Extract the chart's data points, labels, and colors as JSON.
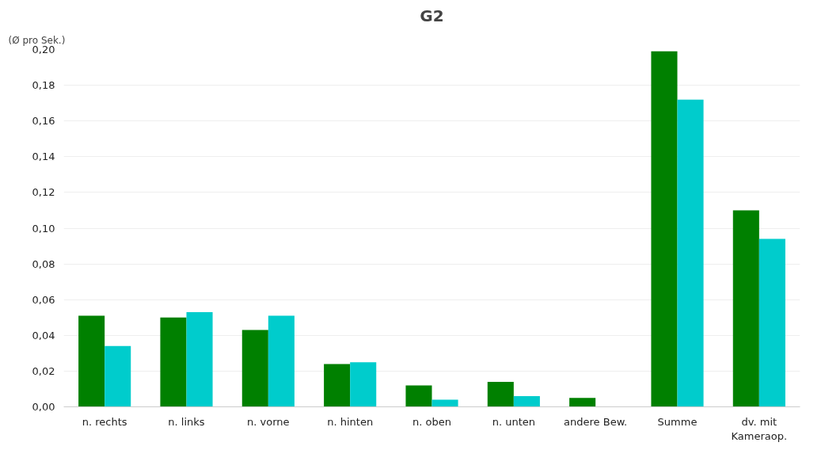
{
  "chart_data": {
    "type": "bar",
    "title": "G2",
    "ylabel": "(Ø pro Sek.)",
    "categories": [
      "n. rechts",
      "n. links",
      "n. vorne",
      "n. hinten",
      "n. oben",
      "n. unten",
      "andere Bew.",
      "Summe",
      "dv. mit\nKameraop."
    ],
    "series": [
      {
        "color": "#008000",
        "values": [
          0.051,
          0.05,
          0.043,
          0.024,
          0.012,
          0.014,
          0.005,
          0.199,
          0.11
        ]
      },
      {
        "color": "#00cccc",
        "values": [
          0.034,
          0.053,
          0.051,
          0.025,
          0.004,
          0.006,
          null,
          0.172,
          0.094
        ]
      }
    ],
    "ylim": [
      0,
      0.2
    ],
    "yticks": [
      {
        "value": 0,
        "label": "0,00"
      },
      {
        "value": 0.02,
        "label": "0,02"
      },
      {
        "value": 0.04,
        "label": "0,04"
      },
      {
        "value": 0.06,
        "label": "0,06"
      },
      {
        "value": 0.08,
        "label": "0,08"
      },
      {
        "value": 0.1,
        "label": "0,10"
      },
      {
        "value": 0.12,
        "label": "0,12"
      },
      {
        "value": 0.14,
        "label": "0,14"
      },
      {
        "value": 0.16,
        "label": "0,16"
      },
      {
        "value": 0.18,
        "label": "0,18"
      },
      {
        "value": 0.2,
        "label": "0,20"
      }
    ],
    "grid": "y"
  }
}
